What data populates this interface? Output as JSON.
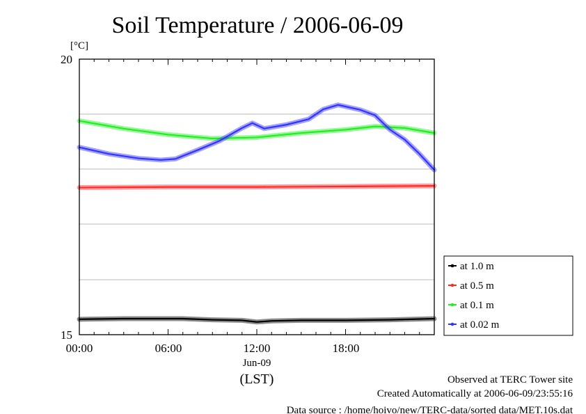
{
  "chart_data": {
    "type": "line",
    "title": "Soil Temperature / 2006-06-09",
    "ylabel": "[°C]",
    "xlabel": "(LST)",
    "ylim": [
      15,
      20
    ],
    "xlim": [
      0,
      24
    ],
    "y_tick_labels": [
      "20",
      "15"
    ],
    "x_tick_labels": [
      "00:00",
      "06:00",
      "12:00",
      "18:00"
    ],
    "x_tick_sublabel": "Jun-09",
    "grid": true,
    "legend_position": "right-bottom",
    "series": [
      {
        "name": "at 1.0 m",
        "color": "#000000",
        "x": [
          0,
          3,
          5,
          7,
          9,
          11,
          12,
          13,
          15,
          18,
          21,
          24
        ],
        "y": [
          15.28,
          15.29,
          15.29,
          15.29,
          15.27,
          15.26,
          15.23,
          15.25,
          15.26,
          15.26,
          15.27,
          15.29
        ]
      },
      {
        "name": "at 0.5 m",
        "color": "#ff2a2a",
        "x": [
          0,
          6,
          12,
          18,
          24
        ],
        "y": [
          17.67,
          17.68,
          17.68,
          17.69,
          17.7
        ]
      },
      {
        "name": "at 0.1 m",
        "color": "#22ee22",
        "x": [
          0,
          3,
          6,
          9,
          12,
          15,
          18,
          20,
          22,
          24
        ],
        "y": [
          18.88,
          18.74,
          18.63,
          18.56,
          18.58,
          18.66,
          18.72,
          18.78,
          18.75,
          18.66
        ]
      },
      {
        "name": "at 0.02 m",
        "color": "#3333ff",
        "x": [
          0,
          2,
          4,
          5.5,
          6.5,
          8,
          9.5,
          11,
          11.7,
          12.5,
          14,
          15.5,
          16.5,
          17.5,
          19,
          20,
          21,
          22,
          23,
          24
        ],
        "y": [
          18.4,
          18.28,
          18.2,
          18.17,
          18.19,
          18.35,
          18.52,
          18.75,
          18.84,
          18.74,
          18.81,
          18.91,
          19.09,
          19.17,
          19.08,
          18.98,
          18.72,
          18.54,
          18.28,
          17.99
        ]
      }
    ]
  },
  "footer": {
    "line1": "Observed at TERC Tower site",
    "line2": "Created Automatically at 2006-06-09/23:55:16",
    "line3": "Data source : /home/hoivo/new/TERC-data/sorted  data/MET.10s.dat"
  }
}
